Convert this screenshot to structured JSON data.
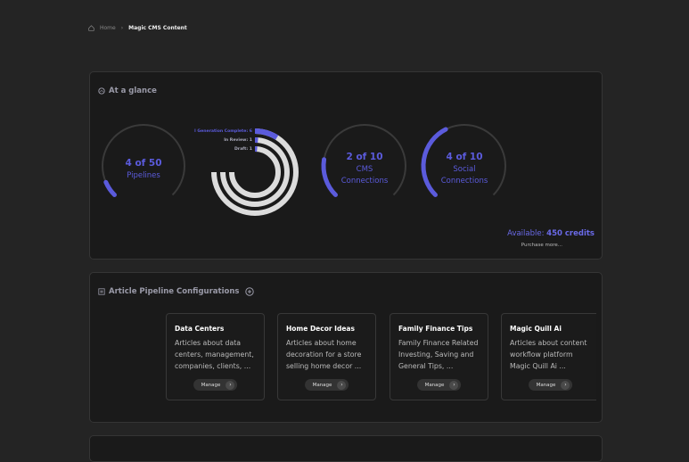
{
  "breadcrumb": {
    "home": "Home",
    "current": "Magic CMS Content"
  },
  "glance": {
    "title": "At a glance",
    "gauges": [
      {
        "label": "4 of 50",
        "caption": "Pipelines",
        "value": 4,
        "max": 50
      },
      {
        "label": "2 of 10",
        "caption": "CMS Connections",
        "value": 2,
        "max": 10
      },
      {
        "label": "4 of 10",
        "caption": "Social Connections",
        "value": 4,
        "max": 10
      }
    ],
    "status_chart": {
      "type": "radial-bar",
      "values": [
        6,
        1,
        1
      ],
      "value_labels": [
        "l Generation Complete: 6",
        "In Review: 1",
        "Draft: 1"
      ],
      "range": [
        0,
        50
      ],
      "color": "#5b5bdc",
      "track_color": "#dcdcdc"
    },
    "available_label": "Available:",
    "credits": "450 credits",
    "purchase": "Purchase more..."
  },
  "pipelines": {
    "title": "Article Pipeline Configurations",
    "cards": [
      {
        "title": "Data Centers",
        "description": "Articles about data centers, management, companies, clients, ...",
        "button": "Manage"
      },
      {
        "title": "Home Decor Ideas",
        "description": "Articles about home decoration for a store selling home decor ...",
        "button": "Manage"
      },
      {
        "title": "Family Finance Tips",
        "description": "Family Finance Related Investing, Saving and General Tips, ...",
        "button": "Manage"
      },
      {
        "title": "Magic Quill Ai",
        "description": "Articles about content workflow platform Magic Quill Ai ...",
        "button": "Manage"
      }
    ]
  }
}
